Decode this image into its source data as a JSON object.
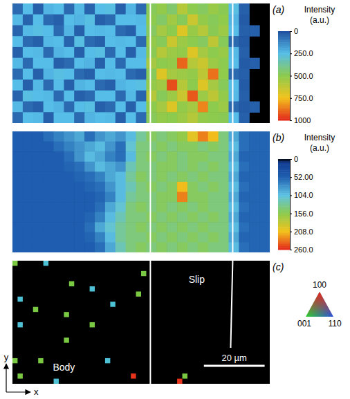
{
  "chart_data": [
    {
      "type": "heatmap",
      "title": "(a)",
      "tick_labels": false,
      "cells": [
        [
          60,
          250,
          40,
          230,
          250,
          60,
          240,
          50,
          250,
          260,
          40,
          230,
          60,
          480,
          520,
          450,
          600,
          500,
          470,
          530,
          490,
          260,
          40,
          null,
          null
        ],
        [
          240,
          50,
          250,
          60,
          40,
          250,
          230,
          260,
          40,
          60,
          250,
          250,
          240,
          500,
          460,
          550,
          480,
          650,
          520,
          480,
          510,
          230,
          30,
          null,
          null
        ],
        [
          50,
          240,
          260,
          250,
          60,
          230,
          40,
          250,
          240,
          250,
          60,
          40,
          250,
          470,
          560,
          500,
          700,
          530,
          600,
          490,
          540,
          250,
          40,
          40,
          null
        ],
        [
          250,
          60,
          40,
          240,
          250,
          50,
          260,
          60,
          40,
          250,
          240,
          250,
          60,
          520,
          480,
          650,
          540,
          500,
          470,
          620,
          480,
          60,
          30,
          null,
          null
        ],
        [
          40,
          250,
          240,
          60,
          230,
          250,
          40,
          250,
          260,
          60,
          250,
          40,
          240,
          490,
          600,
          540,
          520,
          700,
          560,
          500,
          530,
          240,
          40,
          null,
          null
        ],
        [
          240,
          60,
          250,
          250,
          40,
          60,
          250,
          230,
          40,
          250,
          60,
          250,
          250,
          560,
          500,
          520,
          900,
          600,
          650,
          540,
          500,
          250,
          30,
          40,
          null
        ],
        [
          60,
          250,
          40,
          230,
          260,
          250,
          60,
          40,
          250,
          240,
          250,
          60,
          40,
          480,
          700,
          560,
          540,
          520,
          620,
          880,
          510,
          60,
          40,
          null,
          null
        ],
        [
          250,
          40,
          240,
          60,
          250,
          40,
          230,
          250,
          60,
          40,
          230,
          250,
          260,
          520,
          550,
          940,
          600,
          500,
          700,
          560,
          480,
          250,
          30,
          null,
          null
        ],
        [
          50,
          260,
          250,
          240,
          60,
          250,
          40,
          60,
          250,
          250,
          60,
          240,
          50,
          600,
          480,
          540,
          650,
          920,
          540,
          620,
          520,
          240,
          40,
          null,
          null
        ],
        [
          240,
          60,
          40,
          250,
          230,
          60,
          250,
          260,
          40,
          60,
          250,
          40,
          250,
          500,
          560,
          700,
          520,
          560,
          850,
          500,
          540,
          60,
          30,
          40,
          null
        ],
        [
          60,
          250,
          240,
          40,
          250,
          250,
          60,
          230,
          250,
          240,
          40,
          250,
          60,
          480,
          520,
          500,
          540,
          600,
          520,
          500,
          490,
          250,
          40,
          null,
          null
        ]
      ],
      "band_edges": [
        13.4,
        21.4
      ],
      "colorbar": {
        "title": "Intensity (a.u.)",
        "range": [
          0,
          1000
        ],
        "ticks": [
          0,
          {
            "value": 250,
            "label": "250.0"
          },
          {
            "value": 500,
            "label": "500.0"
          },
          {
            "value": 750,
            "label": "750.0"
          },
          1000
        ]
      }
    },
    {
      "type": "heatmap",
      "title": "(b)",
      "tick_labels": false,
      "cells": [
        [
          50,
          50,
          50,
          60,
          70,
          80,
          90,
          60,
          80,
          90,
          80,
          100,
          130,
          150,
          140,
          150,
          160,
          200,
          230,
          210,
          140,
          90,
          60,
          55,
          55
        ],
        [
          50,
          50,
          50,
          50,
          60,
          70,
          80,
          90,
          100,
          80,
          60,
          110,
          140,
          140,
          150,
          140,
          150,
          150,
          140,
          150,
          140,
          100,
          60,
          55,
          55
        ],
        [
          50,
          50,
          50,
          50,
          50,
          60,
          80,
          100,
          90,
          70,
          60,
          100,
          140,
          150,
          140,
          150,
          140,
          150,
          150,
          140,
          140,
          90,
          55,
          55,
          55
        ],
        [
          50,
          50,
          50,
          50,
          50,
          55,
          60,
          80,
          100,
          90,
          80,
          120,
          140,
          140,
          150,
          150,
          140,
          150,
          140,
          150,
          140,
          100,
          60,
          55,
          55
        ],
        [
          50,
          50,
          50,
          50,
          50,
          50,
          55,
          60,
          70,
          90,
          100,
          130,
          150,
          140,
          150,
          140,
          150,
          140,
          150,
          140,
          140,
          90,
          55,
          55,
          55
        ],
        [
          50,
          50,
          50,
          50,
          50,
          50,
          50,
          55,
          60,
          80,
          100,
          120,
          140,
          150,
          140,
          150,
          210,
          150,
          140,
          150,
          140,
          100,
          60,
          55,
          55
        ],
        [
          50,
          50,
          50,
          50,
          50,
          50,
          50,
          50,
          55,
          70,
          100,
          130,
          140,
          140,
          150,
          150,
          230,
          150,
          150,
          140,
          140,
          90,
          55,
          55,
          55
        ],
        [
          50,
          50,
          50,
          50,
          50,
          50,
          50,
          50,
          60,
          90,
          110,
          140,
          150,
          140,
          150,
          140,
          150,
          140,
          150,
          140,
          140,
          100,
          60,
          55,
          55
        ],
        [
          50,
          50,
          50,
          50,
          50,
          50,
          50,
          55,
          70,
          100,
          120,
          140,
          140,
          150,
          140,
          150,
          140,
          150,
          140,
          150,
          140,
          90,
          55,
          55,
          55
        ],
        [
          50,
          50,
          50,
          50,
          50,
          50,
          50,
          60,
          90,
          110,
          130,
          140,
          150,
          140,
          150,
          140,
          150,
          140,
          150,
          140,
          140,
          100,
          60,
          55,
          55
        ],
        [
          50,
          50,
          50,
          50,
          50,
          50,
          50,
          55,
          70,
          100,
          130,
          140,
          140,
          150,
          140,
          150,
          140,
          150,
          140,
          150,
          140,
          90,
          55,
          55,
          55
        ],
        [
          50,
          50,
          50,
          50,
          50,
          50,
          50,
          50,
          60,
          90,
          120,
          140,
          150,
          140,
          150,
          140,
          150,
          140,
          150,
          140,
          140,
          100,
          60,
          55,
          55
        ]
      ],
      "band_edges": [
        13.4,
        21.4
      ],
      "colorbar": {
        "title": "Intensity (a.u.)",
        "range": [
          0,
          260
        ],
        "ticks": [
          0,
          {
            "value": 52,
            "label": "52.00"
          },
          {
            "value": 104,
            "label": "104.0"
          },
          {
            "value": 156,
            "label": "156.0"
          },
          {
            "value": 208,
            "label": "208.0"
          },
          {
            "value": 260,
            "label": "260.0"
          }
        ]
      }
    },
    {
      "type": "orientation_map",
      "title": "(c)",
      "tick_labels": false,
      "xlim": [
        0,
        50
      ],
      "ylim": [
        0,
        24
      ],
      "x": [
        0,
        6,
        11,
        15,
        1,
        4,
        10,
        19,
        15,
        1,
        10,
        0,
        18,
        5,
        1,
        8,
        24,
        23,
        33,
        32,
        25
      ],
      "y": [
        0,
        0,
        4,
        5,
        7,
        9,
        10,
        8,
        12,
        12,
        15,
        19,
        19,
        19,
        22,
        23,
        6,
        22,
        22,
        23,
        2
      ],
      "colors": [
        "#7ac943",
        "#4fc1d6",
        "#7ac943",
        "#4fc1d6",
        "#4fc1d6",
        "#7ac943",
        "#7ac943",
        "#4fc1d6",
        "#7ac943",
        "#4fc1d6",
        "#7ac943",
        "#7ac943",
        "#4fc1d6",
        "#7ac943",
        "#7ac943",
        "#4fc1d6",
        "#7ac943",
        "#e8341c",
        "#7ac943",
        "#e8341c",
        "#7ac943"
      ],
      "band_edges": [
        {
          "x": [
            26.8,
            26.8
          ],
          "y": [
            0,
            24
          ]
        },
        {
          "x": [
            42.8,
            42.4
          ],
          "y": [
            0,
            17
          ]
        }
      ],
      "annotations": [
        {
          "text": "Slip",
          "x": 35.8,
          "y": 4.3
        },
        {
          "text": "Body",
          "x": 10,
          "y": 21.4
        }
      ],
      "scale_bar": {
        "label": "20 µm",
        "x": [
          37.2,
          49
        ],
        "y": 20.5
      },
      "ipf_key": {
        "top": "100",
        "left": "001",
        "right": "110"
      },
      "axis_glyph": {
        "x": "x",
        "y": "y"
      }
    }
  ]
}
